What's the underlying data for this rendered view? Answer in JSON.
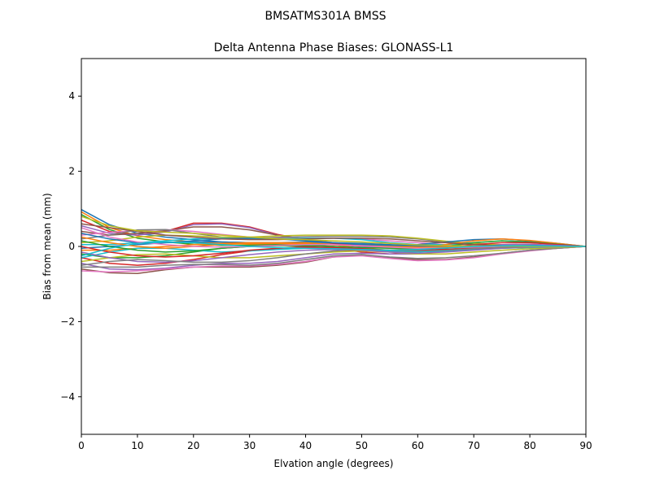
{
  "figure": {
    "suptitle": "BMSATMS301A     BMSS"
  },
  "chart_data": {
    "type": "line",
    "title": "Delta Antenna Phase Biases: GLONASS-L1",
    "xlabel": "Elvation angle (degrees)",
    "ylabel": "Bias from mean (mm)",
    "xlim": [
      0,
      90
    ],
    "ylim": [
      -5,
      5
    ],
    "xticks": [
      0,
      10,
      20,
      30,
      40,
      50,
      60,
      70,
      80,
      90
    ],
    "xtick_labels": [
      "0",
      "10",
      "20",
      "30",
      "40",
      "50",
      "60",
      "70",
      "80",
      "90"
    ],
    "yticks": [
      -4,
      -2,
      0,
      2,
      4
    ],
    "ytick_labels": [
      "−4",
      "−2",
      "0",
      "2",
      "4"
    ],
    "grid": false,
    "legend": false,
    "colors": [
      "#1f77b4",
      "#ff7f0e",
      "#2ca02c",
      "#d62728",
      "#9467bd",
      "#8c564b",
      "#e377c2",
      "#7f7f7f",
      "#bcbd22",
      "#17becf"
    ],
    "x": [
      0,
      5,
      10,
      15,
      20,
      25,
      30,
      35,
      40,
      45,
      50,
      55,
      60,
      65,
      70,
      75,
      80,
      85,
      90
    ],
    "series": [
      {
        "values": [
          0.98,
          0.58,
          0.35,
          0.25,
          0.18,
          0.12,
          0.1,
          0.1,
          0.1,
          0.08,
          0.05,
          0.02,
          0.0,
          0.02,
          0.05,
          0.05,
          0.03,
          0.02,
          0.0
        ]
      },
      {
        "values": [
          0.92,
          0.5,
          0.28,
          0.18,
          0.12,
          0.08,
          0.06,
          0.07,
          0.08,
          0.07,
          0.05,
          0.03,
          0.01,
          0.02,
          0.04,
          0.05,
          0.03,
          0.01,
          0.0
        ]
      },
      {
        "values": [
          0.85,
          0.45,
          0.22,
          0.12,
          0.06,
          0.03,
          0.03,
          0.05,
          0.06,
          0.06,
          0.05,
          0.03,
          0.02,
          0.03,
          0.04,
          0.04,
          0.03,
          0.01,
          0.0
        ]
      },
      {
        "values": [
          0.7,
          0.4,
          0.3,
          0.4,
          0.62,
          0.62,
          0.52,
          0.32,
          0.18,
          0.08,
          0.02,
          -0.02,
          -0.05,
          -0.03,
          0.0,
          0.02,
          0.02,
          0.01,
          0.0
        ]
      },
      {
        "values": [
          0.55,
          0.35,
          0.3,
          0.38,
          0.58,
          0.6,
          0.5,
          0.3,
          0.15,
          0.05,
          0.0,
          -0.04,
          -0.06,
          -0.03,
          0.01,
          0.02,
          0.02,
          0.01,
          0.0
        ]
      },
      {
        "values": [
          0.4,
          0.3,
          0.35,
          0.42,
          0.52,
          0.52,
          0.44,
          0.3,
          0.18,
          0.1,
          0.05,
          0.0,
          -0.03,
          -0.02,
          0.0,
          0.02,
          0.02,
          0.01,
          0.0
        ]
      },
      {
        "values": [
          0.3,
          0.38,
          0.42,
          0.45,
          0.4,
          0.32,
          0.25,
          0.22,
          0.22,
          0.22,
          0.2,
          0.15,
          0.1,
          0.05,
          0.03,
          0.02,
          0.02,
          0.01,
          0.0
        ]
      },
      {
        "values": [
          0.2,
          0.3,
          0.44,
          0.45,
          0.35,
          0.25,
          0.22,
          0.24,
          0.26,
          0.27,
          0.27,
          0.25,
          0.2,
          0.12,
          0.06,
          0.03,
          0.02,
          0.01,
          0.0
        ]
      },
      {
        "values": [
          0.1,
          0.15,
          0.25,
          0.3,
          0.28,
          0.25,
          0.25,
          0.28,
          0.3,
          0.3,
          0.3,
          0.28,
          0.22,
          0.14,
          0.08,
          0.04,
          0.02,
          0.01,
          0.0
        ]
      },
      {
        "values": [
          0.05,
          0.05,
          0.1,
          0.15,
          0.2,
          0.22,
          0.2,
          0.2,
          0.22,
          0.22,
          0.18,
          0.1,
          0.05,
          0.05,
          0.1,
          0.15,
          0.12,
          0.06,
          0.0
        ]
      },
      {
        "values": [
          -0.05,
          0.0,
          0.05,
          0.1,
          0.12,
          0.12,
          0.1,
          0.1,
          0.12,
          0.1,
          0.05,
          0.02,
          0.05,
          0.12,
          0.18,
          0.2,
          0.15,
          0.08,
          0.0
        ]
      },
      {
        "values": [
          -0.1,
          -0.1,
          -0.05,
          0.0,
          0.05,
          0.08,
          0.1,
          0.1,
          0.1,
          0.05,
          -0.05,
          -0.1,
          -0.05,
          0.05,
          0.15,
          0.2,
          0.16,
          0.08,
          0.0
        ]
      },
      {
        "values": [
          -0.2,
          -0.3,
          -0.3,
          -0.25,
          -0.15,
          -0.05,
          0.0,
          0.05,
          0.05,
          0.0,
          -0.1,
          -0.15,
          -0.1,
          0.0,
          0.1,
          0.15,
          0.12,
          0.06,
          0.0
        ]
      },
      {
        "values": [
          -0.3,
          -0.45,
          -0.5,
          -0.45,
          -0.35,
          -0.22,
          -0.12,
          -0.05,
          0.0,
          -0.05,
          -0.15,
          -0.2,
          -0.15,
          -0.05,
          0.05,
          0.1,
          0.1,
          0.05,
          0.0
        ]
      },
      {
        "values": [
          -0.45,
          -0.6,
          -0.62,
          -0.58,
          -0.5,
          -0.45,
          -0.45,
          -0.4,
          -0.3,
          -0.2,
          -0.18,
          -0.2,
          -0.2,
          -0.12,
          -0.02,
          0.05,
          0.06,
          0.03,
          0.0
        ]
      },
      {
        "values": [
          -0.6,
          -0.7,
          -0.72,
          -0.62,
          -0.55,
          -0.55,
          -0.55,
          -0.5,
          -0.42,
          -0.28,
          -0.22,
          -0.3,
          -0.35,
          -0.35,
          -0.28,
          -0.18,
          -0.1,
          -0.05,
          0.0
        ]
      },
      {
        "values": [
          -0.65,
          -0.68,
          -0.65,
          -0.6,
          -0.55,
          -0.52,
          -0.52,
          -0.48,
          -0.4,
          -0.28,
          -0.25,
          -0.32,
          -0.38,
          -0.36,
          -0.3,
          -0.2,
          -0.12,
          -0.05,
          0.0
        ]
      },
      {
        "values": [
          -0.55,
          -0.55,
          -0.55,
          -0.5,
          -0.48,
          -0.48,
          -0.5,
          -0.45,
          -0.35,
          -0.25,
          -0.22,
          -0.28,
          -0.32,
          -0.3,
          -0.25,
          -0.18,
          -0.1,
          -0.05,
          0.0
        ]
      },
      {
        "values": [
          -0.4,
          -0.3,
          -0.22,
          -0.2,
          -0.25,
          -0.3,
          -0.3,
          -0.25,
          -0.2,
          -0.15,
          -0.12,
          -0.15,
          -0.2,
          -0.2,
          -0.15,
          -0.1,
          -0.06,
          -0.03,
          0.0
        ]
      },
      {
        "values": [
          -0.3,
          -0.15,
          -0.05,
          -0.05,
          -0.1,
          -0.15,
          -0.12,
          -0.08,
          -0.05,
          -0.05,
          -0.08,
          -0.12,
          -0.15,
          -0.12,
          -0.08,
          -0.05,
          -0.03,
          -0.01,
          0.0
        ]
      },
      {
        "values": [
          0.35,
          0.2,
          0.1,
          0.1,
          0.15,
          0.2,
          0.22,
          0.2,
          0.15,
          0.1,
          0.08,
          0.05,
          0.02,
          0.0,
          0.0,
          0.01,
          0.01,
          0.0,
          0.0
        ]
      },
      {
        "values": [
          0.25,
          0.1,
          0.0,
          -0.05,
          0.0,
          0.05,
          0.08,
          0.08,
          0.06,
          0.04,
          0.02,
          0.0,
          -0.02,
          -0.02,
          0.0,
          0.01,
          0.01,
          0.0,
          0.0
        ]
      },
      {
        "values": [
          0.15,
          0.0,
          -0.1,
          -0.15,
          -0.12,
          -0.05,
          0.0,
          0.02,
          0.02,
          0.0,
          -0.03,
          -0.05,
          -0.06,
          -0.05,
          -0.02,
          0.0,
          0.0,
          0.0,
          0.0
        ]
      },
      {
        "values": [
          0.0,
          -0.15,
          -0.25,
          -0.28,
          -0.25,
          -0.18,
          -0.1,
          -0.05,
          -0.02,
          -0.03,
          -0.06,
          -0.1,
          -0.1,
          -0.08,
          -0.05,
          -0.02,
          -0.01,
          0.0,
          0.0
        ]
      },
      {
        "values": [
          -0.15,
          -0.3,
          -0.4,
          -0.42,
          -0.38,
          -0.3,
          -0.22,
          -0.15,
          -0.1,
          -0.08,
          -0.1,
          -0.15,
          -0.18,
          -0.15,
          -0.1,
          -0.05,
          -0.02,
          -0.01,
          0.0
        ]
      },
      {
        "values": [
          0.6,
          0.5,
          0.4,
          0.3,
          0.25,
          0.2,
          0.18,
          0.18,
          0.2,
          0.22,
          0.22,
          0.2,
          0.15,
          0.1,
          0.05,
          0.02,
          0.01,
          0.0,
          0.0
        ]
      },
      {
        "values": [
          0.5,
          0.25,
          0.12,
          0.05,
          0.0,
          -0.02,
          0.0,
          0.03,
          0.05,
          0.05,
          0.02,
          -0.02,
          -0.05,
          -0.04,
          -0.02,
          0.0,
          0.0,
          0.0,
          0.0
        ]
      },
      {
        "values": [
          -0.5,
          -0.4,
          -0.35,
          -0.38,
          -0.42,
          -0.42,
          -0.38,
          -0.3,
          -0.2,
          -0.12,
          -0.08,
          -0.1,
          -0.12,
          -0.1,
          -0.06,
          -0.03,
          -0.01,
          0.0,
          0.0
        ]
      },
      {
        "values": [
          0.8,
          0.55,
          0.42,
          0.38,
          0.35,
          0.3,
          0.25,
          0.2,
          0.18,
          0.15,
          0.12,
          0.08,
          0.04,
          0.02,
          0.01,
          0.01,
          0.0,
          0.0,
          0.0
        ]
      },
      {
        "values": [
          -0.25,
          -0.05,
          0.08,
          0.12,
          0.1,
          0.05,
          0.0,
          -0.03,
          -0.05,
          -0.06,
          -0.08,
          -0.1,
          -0.08,
          -0.04,
          0.0,
          0.02,
          0.02,
          0.01,
          0.0
        ]
      }
    ]
  }
}
